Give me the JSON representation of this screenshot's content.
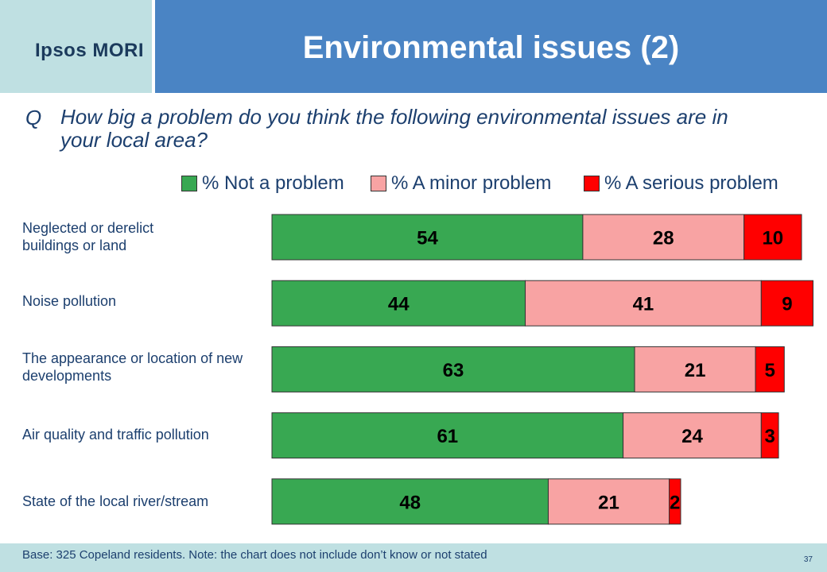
{
  "logo": "Ipsos MORI",
  "title": "Environmental issues (2)",
  "question": {
    "prefix": "Q",
    "text": "How big a problem do you think the following environmental issues are in your local area?"
  },
  "colors": {
    "not_a_problem": "#38a852",
    "minor_problem": "#f8a3a3",
    "serious_problem": "#ff0000",
    "title_bar": "#4a84c4",
    "logo_bg": "#bfe0e2"
  },
  "chart_data": {
    "type": "bar",
    "orientation": "horizontal",
    "stacked": true,
    "categories": [
      "Neglected or derelict buildings or land",
      "Noise pollution",
      "The appearance or location of new developments",
      "Air quality and traffic pollution",
      "State of the local river/stream"
    ],
    "series": [
      {
        "name": "% Not a problem",
        "values": [
          54,
          44,
          63,
          61,
          48
        ]
      },
      {
        "name": "% A minor problem",
        "values": [
          28,
          41,
          21,
          24,
          21
        ]
      },
      {
        "name": "% A serious problem",
        "values": [
          10,
          9,
          5,
          3,
          2
        ]
      }
    ],
    "xlim": [
      0,
      92
    ],
    "legend_position": "top-right",
    "grid": false
  },
  "footer": {
    "note": "Base: 325 Copeland residents.  Note: the chart does not include don’t know or not stated",
    "page_number": "37"
  }
}
